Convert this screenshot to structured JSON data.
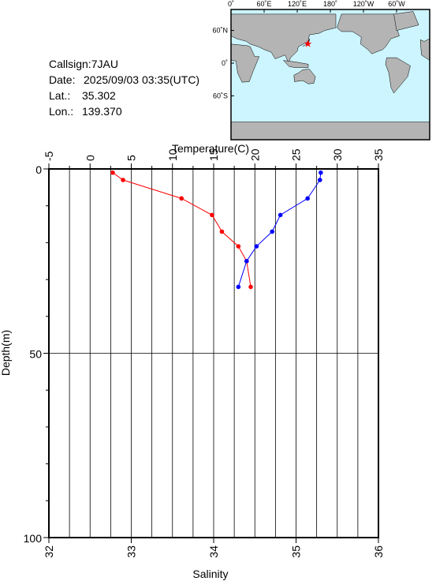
{
  "info": {
    "callsign": "Callsign:7JAU",
    "date_label": "Date:",
    "date": "2025/09/03 03:35(UTC)",
    "lat_label": "Lat.:",
    "lat": {
      "value": 35.302,
      "label": "35.302"
    },
    "lon_label": "Lon.:",
    "lon": {
      "value": 139.37,
      "label": "139.370"
    }
  },
  "map": {
    "lon_labels": [
      "0˚",
      "60˚E",
      "120˚E",
      "180˚",
      "120˚W",
      "60˚W"
    ],
    "lat_labels": [
      "60˚N",
      "0˚",
      "60˚S"
    ]
  },
  "chart_data": {
    "type": "line",
    "x2label": "Temperature(C)",
    "xlabel": "Salinity",
    "ylabel": "Depth(m)",
    "y": [
      1,
      3,
      8,
      12.5,
      17,
      21,
      25,
      32
    ],
    "series": [
      {
        "color": "#ff0000",
        "axis": "x2",
        "values": [
          2.75,
          4.0,
          11.1,
          14.8,
          16.0,
          18.0,
          19.0,
          19.5
        ]
      },
      {
        "color": "#0000ff",
        "axis": "x",
        "values": [
          35.3,
          35.29,
          35.14,
          34.81,
          34.71,
          34.52,
          34.4,
          34.3
        ]
      }
    ],
    "xlim": [
      32,
      36
    ],
    "xticks": [
      32,
      33,
      34,
      35,
      36
    ],
    "x2lim": [
      -5,
      35
    ],
    "x2ticks": [
      -5,
      0,
      5,
      10,
      15,
      20,
      25,
      30,
      35
    ],
    "x2minor": [
      -2.5,
      2.5,
      7.5,
      12.5,
      17.5,
      22.5,
      27.5,
      32.5
    ],
    "ylim": [
      0,
      100
    ],
    "yticks": [
      0,
      50,
      100
    ],
    "yminor": [
      10,
      20,
      30,
      40,
      60,
      70,
      80,
      90
    ],
    "grid": true
  }
}
